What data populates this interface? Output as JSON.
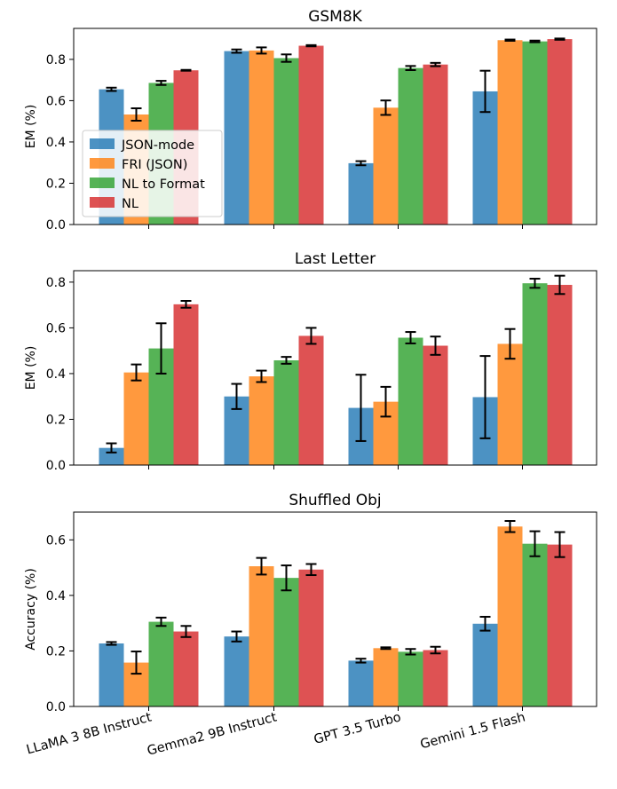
{
  "colors": {
    "JSON-mode": "#1f77b4",
    "FRI (JSON)": "#ff7f0e",
    "NL to Format": "#2ca02c",
    "NL": "#d62728"
  },
  "chart_data": [
    {
      "type": "bar",
      "title": "GSM8K",
      "xlabel": "",
      "ylabel": "EM (%)",
      "ylim": [
        0,
        0.95
      ],
      "yticks": [
        "0.0",
        "0.2",
        "0.4",
        "0.6",
        "0.8"
      ],
      "legend": "center-left",
      "categories": [
        "LLaMA 3 8B Instruct",
        "Gemma2 9B Instruct",
        "GPT 3.5 Turbo",
        "Gemini 1.5 Flash"
      ],
      "series": [
        {
          "name": "JSON-mode",
          "values": [
            0.655,
            0.84,
            0.297,
            0.645
          ],
          "errors": [
            0.008,
            0.008,
            0.01,
            0.1
          ]
        },
        {
          "name": "FRI (JSON)",
          "values": [
            0.533,
            0.843,
            0.566,
            0.893
          ],
          "errors": [
            0.03,
            0.015,
            0.035,
            0.003
          ]
        },
        {
          "name": "NL to Format",
          "values": [
            0.686,
            0.806,
            0.758,
            0.887
          ],
          "errors": [
            0.01,
            0.018,
            0.01,
            0.004
          ]
        },
        {
          "name": "NL",
          "values": [
            0.747,
            0.866,
            0.775,
            0.898
          ],
          "errors": [
            0.002,
            0.003,
            0.008,
            0.003
          ]
        }
      ]
    },
    {
      "type": "bar",
      "title": "Last Letter",
      "xlabel": "",
      "ylabel": "EM (%)",
      "ylim": [
        0,
        0.85
      ],
      "yticks": [
        "0.0",
        "0.2",
        "0.4",
        "0.6",
        "0.8"
      ],
      "legend": "",
      "categories": [
        "LLaMA 3 8B Instruct",
        "Gemma2 9B Instruct",
        "GPT 3.5 Turbo",
        "Gemini 1.5 Flash"
      ],
      "series": [
        {
          "name": "JSON-mode",
          "values": [
            0.075,
            0.3,
            0.25,
            0.297
          ],
          "errors": [
            0.02,
            0.055,
            0.145,
            0.18
          ]
        },
        {
          "name": "FRI (JSON)",
          "values": [
            0.405,
            0.388,
            0.277,
            0.53
          ],
          "errors": [
            0.035,
            0.025,
            0.065,
            0.065
          ]
        },
        {
          "name": "NL to Format",
          "values": [
            0.51,
            0.458,
            0.557,
            0.795
          ],
          "errors": [
            0.11,
            0.015,
            0.025,
            0.02
          ]
        },
        {
          "name": "NL",
          "values": [
            0.703,
            0.565,
            0.522,
            0.788
          ],
          "errors": [
            0.015,
            0.035,
            0.04,
            0.04
          ]
        }
      ]
    },
    {
      "type": "bar",
      "title": "Shuffled Obj",
      "xlabel": "",
      "ylabel": "Accuracy (%)",
      "ylim": [
        0,
        0.7
      ],
      "yticks": [
        "0.0",
        "0.2",
        "0.4",
        "0.6"
      ],
      "legend": "",
      "categories": [
        "LLaMA 3 8B Instruct",
        "Gemma2 9B Instruct",
        "GPT 3.5 Turbo",
        "Gemini 1.5 Flash"
      ],
      "series": [
        {
          "name": "JSON-mode",
          "values": [
            0.227,
            0.252,
            0.165,
            0.298
          ],
          "errors": [
            0.005,
            0.018,
            0.007,
            0.025
          ]
        },
        {
          "name": "FRI (JSON)",
          "values": [
            0.158,
            0.505,
            0.21,
            0.648
          ],
          "errors": [
            0.04,
            0.03,
            0.003,
            0.02
          ]
        },
        {
          "name": "NL to Format",
          "values": [
            0.305,
            0.463,
            0.197,
            0.586
          ],
          "errors": [
            0.015,
            0.045,
            0.01,
            0.045
          ]
        },
        {
          "name": "NL",
          "values": [
            0.27,
            0.493,
            0.203,
            0.583
          ],
          "errors": [
            0.02,
            0.02,
            0.012,
            0.045
          ]
        }
      ]
    }
  ]
}
